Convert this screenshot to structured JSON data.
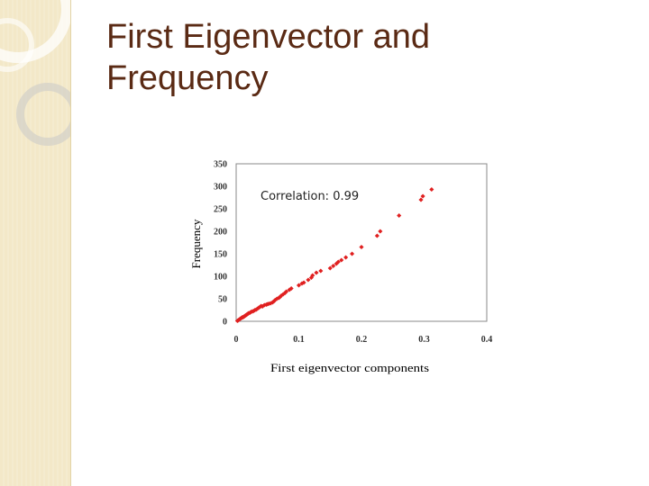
{
  "slide": {
    "title_line1": "First Eigenvector and",
    "title_line2": "Frequency"
  },
  "colors": {
    "title": "#5a2a14",
    "points": "#e02020",
    "frame": "#888888",
    "side_band": "#f3e8c8"
  },
  "icons": [
    "decorative-ring-icon"
  ],
  "chart_data": {
    "type": "scatter",
    "title": "",
    "xlabel": "First eigenvector components",
    "ylabel": "Frequency",
    "xlim": [
      0,
      0.4
    ],
    "ylim": [
      0,
      350
    ],
    "x_ticks": [
      "0",
      "0.1",
      "0.2",
      "0.3",
      "0.4"
    ],
    "y_ticks": [
      "0",
      "50",
      "100",
      "150",
      "200",
      "250",
      "300",
      "350"
    ],
    "grid": false,
    "annotation": "Correlation: 0.99",
    "series": [
      {
        "points": [
          [
            0.002,
            1
          ],
          [
            0.003,
            2
          ],
          [
            0.004,
            3
          ],
          [
            0.005,
            4
          ],
          [
            0.006,
            5
          ],
          [
            0.007,
            6
          ],
          [
            0.008,
            7
          ],
          [
            0.009,
            8
          ],
          [
            0.01,
            9
          ],
          [
            0.011,
            9
          ],
          [
            0.012,
            10
          ],
          [
            0.013,
            11
          ],
          [
            0.014,
            12
          ],
          [
            0.015,
            13
          ],
          [
            0.016,
            14
          ],
          [
            0.017,
            15
          ],
          [
            0.018,
            16
          ],
          [
            0.019,
            17
          ],
          [
            0.02,
            18
          ],
          [
            0.022,
            19
          ],
          [
            0.024,
            21
          ],
          [
            0.026,
            22
          ],
          [
            0.028,
            23
          ],
          [
            0.03,
            25
          ],
          [
            0.032,
            26
          ],
          [
            0.034,
            28
          ],
          [
            0.036,
            30
          ],
          [
            0.038,
            32
          ],
          [
            0.04,
            34
          ],
          [
            0.042,
            33
          ],
          [
            0.045,
            36
          ],
          [
            0.048,
            37
          ],
          [
            0.05,
            38
          ],
          [
            0.052,
            39
          ],
          [
            0.055,
            40
          ],
          [
            0.058,
            42
          ],
          [
            0.06,
            44
          ],
          [
            0.062,
            47
          ],
          [
            0.065,
            50
          ],
          [
            0.068,
            52
          ],
          [
            0.07,
            54
          ],
          [
            0.072,
            57
          ],
          [
            0.075,
            60
          ],
          [
            0.078,
            63
          ],
          [
            0.08,
            66
          ],
          [
            0.085,
            70
          ],
          [
            0.088,
            73
          ],
          [
            0.1,
            80
          ],
          [
            0.105,
            84
          ],
          [
            0.108,
            86
          ],
          [
            0.115,
            92
          ],
          [
            0.12,
            97
          ],
          [
            0.122,
            102
          ],
          [
            0.128,
            108
          ],
          [
            0.135,
            112
          ],
          [
            0.15,
            118
          ],
          [
            0.155,
            123
          ],
          [
            0.16,
            128
          ],
          [
            0.163,
            132
          ],
          [
            0.168,
            136
          ],
          [
            0.175,
            142
          ],
          [
            0.185,
            150
          ],
          [
            0.2,
            165
          ],
          [
            0.225,
            190
          ],
          [
            0.23,
            200
          ],
          [
            0.26,
            235
          ],
          [
            0.295,
            270
          ],
          [
            0.298,
            278
          ],
          [
            0.312,
            293
          ]
        ]
      }
    ]
  }
}
